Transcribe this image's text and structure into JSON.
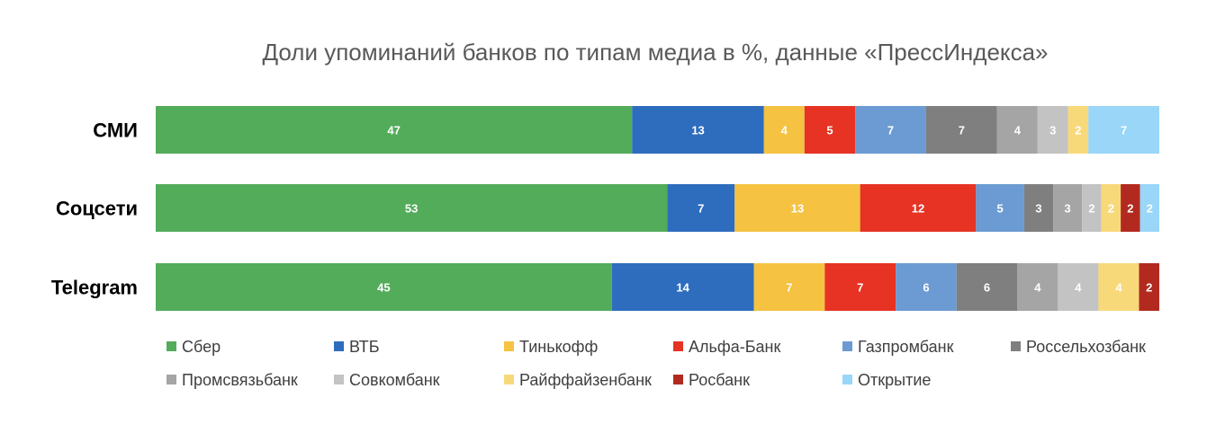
{
  "chart_data": {
    "type": "bar",
    "orientation": "horizontal",
    "stacked": true,
    "title": "Доли упоминаний банков по типам медиа в %, данные «ПрессИндекса»",
    "categories": [
      "СМИ",
      "Соцсети",
      "Telegram"
    ],
    "series": [
      {
        "name": "Сбер",
        "color": "#52AC5A",
        "values": [
          47,
          53,
          45
        ]
      },
      {
        "name": "ВТБ",
        "color": "#2E6DBE",
        "values": [
          13,
          7,
          14
        ]
      },
      {
        "name": "Тинькофф",
        "color": "#F5C242",
        "values": [
          4,
          13,
          7
        ]
      },
      {
        "name": "Альфа-Банк",
        "color": "#E63323",
        "values": [
          5,
          12,
          7
        ]
      },
      {
        "name": "Газпромбанк",
        "color": "#6B9BD2",
        "values": [
          7,
          5,
          6
        ]
      },
      {
        "name": "Россельхозбанк",
        "color": "#7F7F7F",
        "values": [
          7,
          3,
          6
        ]
      },
      {
        "name": "Промсвязьбанк",
        "color": "#A5A5A5",
        "values": [
          4,
          3,
          4
        ]
      },
      {
        "name": "Совкомбанк",
        "color": "#C3C3C3",
        "values": [
          3,
          2,
          4
        ]
      },
      {
        "name": "Райффайзенбанк",
        "color": "#F8D97A",
        "values": [
          2,
          2,
          4
        ]
      },
      {
        "name": "Росбанк",
        "color": "#B22A1F",
        "values": [
          0,
          2,
          2
        ]
      },
      {
        "name": "Открытие",
        "color": "#99D6F8",
        "values": [
          7,
          2,
          0
        ]
      }
    ],
    "xlim": [
      0,
      100
    ],
    "grid": false,
    "legend": "bottom"
  }
}
